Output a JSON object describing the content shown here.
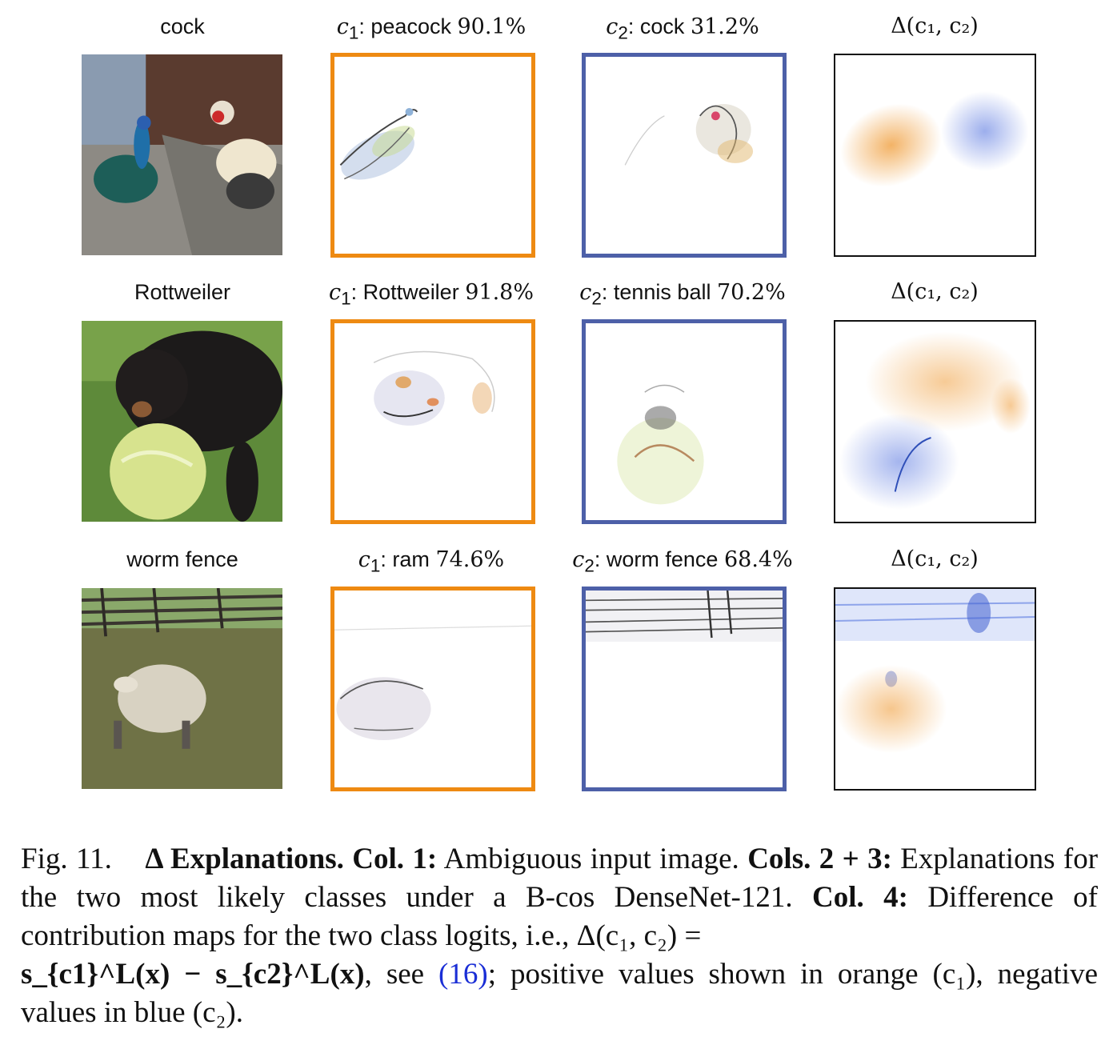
{
  "rows": [
    {
      "input_label": "cock",
      "c1": {
        "var": "c",
        "sub": "1",
        "class": "peacock",
        "pct": "90.1%"
      },
      "c2": {
        "var": "c",
        "sub": "2",
        "class": "cock",
        "pct": "31.2%"
      },
      "delta": "Δ(c₁, c₂)"
    },
    {
      "input_label": "Rottweiler",
      "c1": {
        "var": "c",
        "sub": "1",
        "class": "Rottweiler",
        "pct": "91.8%"
      },
      "c2": {
        "var": "c",
        "sub": "2",
        "class": "tennis ball",
        "pct": "70.2%"
      },
      "delta": "Δ(c₁, c₂)"
    },
    {
      "input_label": "worm fence",
      "c1": {
        "var": "c",
        "sub": "1",
        "class": "ram",
        "pct": "74.6%"
      },
      "c2": {
        "var": "c",
        "sub": "2",
        "class": "worm fence",
        "pct": "68.4%"
      },
      "delta": "Δ(c₁, c₂)"
    }
  ],
  "colors": {
    "c1_frame": "#ee8a12",
    "c2_frame": "#4d60a8",
    "positive": "#f0a040",
    "negative": "#5a78e0"
  },
  "caption": {
    "fig": "Fig. 11.",
    "title": "Δ Explanations.",
    "col1_label": "Col. 1:",
    "col1_text": "Ambiguous input image.",
    "cols23_label": "Cols. 2 + 3:",
    "cols23_text": "Explanations for the two most likely classes under a B-cos DenseNet-121.",
    "col4_label": "Col. 4:",
    "col4_text": "Difference of contribution maps for the two class logits, i.e., Δ(c₁, c₂) =",
    "formula": "s_{c1}^L(x) − s_{c2}^L(x)",
    "see": ", see",
    "ref": "(16)",
    "rest": "; positive values shown in orange (c₁), negative values in blue (c₂)."
  }
}
